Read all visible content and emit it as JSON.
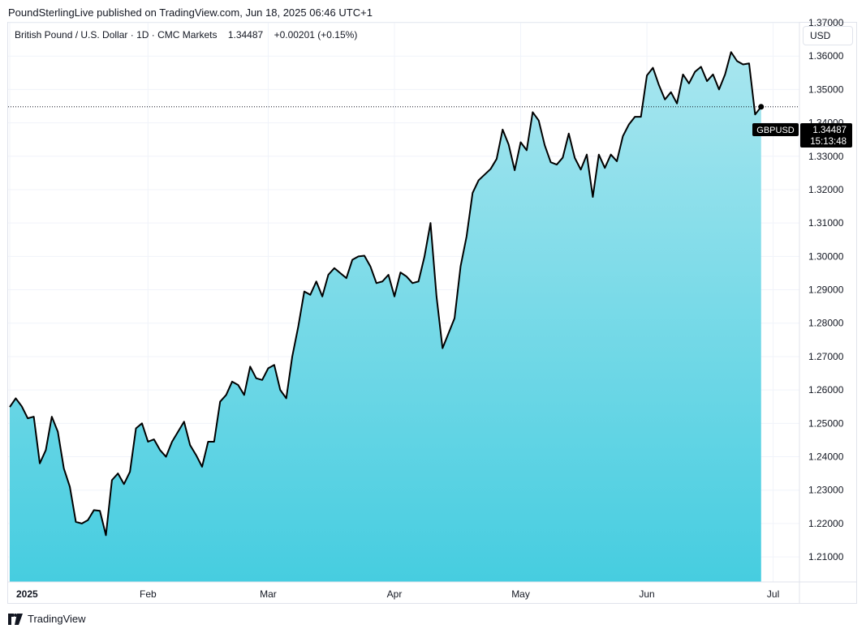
{
  "header": {
    "publisher": "PoundSterlingLive published on TradingView.com, Jun 18, 2025 06:46 UTC+1"
  },
  "legend": {
    "symbol": "British Pound / U.S. Dollar",
    "interval": "1D",
    "source": "CMC Markets",
    "last": "1.34487",
    "change": "+0.00201",
    "change_pct": "(+0.15%)"
  },
  "currency_button": "USD",
  "price_tag": {
    "symbol": "GBPUSD",
    "price": "1.34487",
    "countdown": "15:13:48"
  },
  "footer": {
    "brand": "TradingView"
  },
  "colors": {
    "line": "#000000",
    "fill_top": "#a8e6ef",
    "fill_bottom": "#46cde0",
    "grid": "#f0f3fa",
    "tag_bg": "#000000"
  },
  "chart_data": {
    "type": "area",
    "y_ticks": [
      "1.21000",
      "1.22000",
      "1.23000",
      "1.24000",
      "1.25000",
      "1.26000",
      "1.27000",
      "1.28000",
      "1.29000",
      "1.30000",
      "1.31000",
      "1.32000",
      "1.33000",
      "1.34000",
      "1.35000",
      "1.36000",
      "1.37000"
    ],
    "x_ticks": [
      {
        "label": "2025",
        "bold": true,
        "index": 0
      },
      {
        "label": "Feb",
        "bold": false,
        "index": 23
      },
      {
        "label": "Mar",
        "bold": false,
        "index": 43
      },
      {
        "label": "Apr",
        "bold": false,
        "index": 64
      },
      {
        "label": "May",
        "bold": false,
        "index": 85
      },
      {
        "label": "Jun",
        "bold": false,
        "index": 106
      },
      {
        "label": "Jul",
        "bold": false,
        "index": 127
      }
    ],
    "ylim": [
      1.2025,
      1.37
    ],
    "x_range": [
      0,
      128
    ],
    "values": [
      1.2549,
      1.2575,
      1.2551,
      1.2515,
      1.252,
      1.238,
      1.242,
      1.252,
      1.2475,
      1.2365,
      1.231,
      1.2205,
      1.22,
      1.221,
      1.224,
      1.2238,
      1.2165,
      1.233,
      1.235,
      1.2318,
      1.2355,
      1.2485,
      1.25,
      1.2445,
      1.2452,
      1.242,
      1.24,
      1.2445,
      1.2475,
      1.2505,
      1.2435,
      1.2405,
      1.237,
      1.2445,
      1.2445,
      1.2565,
      1.2585,
      1.2625,
      1.2615,
      1.2585,
      1.267,
      1.2635,
      1.263,
      1.2665,
      1.2675,
      1.26,
      1.2575,
      1.27,
      1.279,
      1.2895,
      1.2885,
      1.2925,
      1.288,
      1.2945,
      1.2965,
      1.295,
      1.2935,
      1.299,
      1.3,
      1.3002,
      1.297,
      1.292,
      1.2925,
      1.2945,
      1.288,
      1.2952,
      1.294,
      1.292,
      1.2925,
      1.3,
      1.31,
      1.288,
      1.2725,
      1.277,
      1.2815,
      1.297,
      1.306,
      1.319,
      1.3228,
      1.3245,
      1.3262,
      1.3292,
      1.338,
      1.3335,
      1.3258,
      1.3342,
      1.3318,
      1.3432,
      1.3407,
      1.3333,
      1.3282,
      1.3275,
      1.3296,
      1.3368,
      1.3295,
      1.326,
      1.3305,
      1.3178,
      1.3305,
      1.3265,
      1.3305,
      1.3285,
      1.336,
      1.3395,
      1.3418,
      1.3418,
      1.3542,
      1.3565,
      1.3513,
      1.347,
      1.3492,
      1.3458,
      1.3545,
      1.3518,
      1.3553,
      1.3568,
      1.3525,
      1.3545,
      1.35,
      1.3545,
      1.3612,
      1.3585,
      1.3575,
      1.3578,
      1.3425,
      1.3448
    ]
  }
}
